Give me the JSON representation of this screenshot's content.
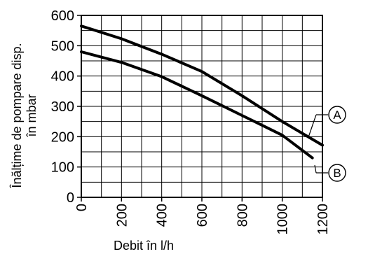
{
  "chart_data": {
    "type": "line",
    "title": "",
    "xlabel": "Debit în l/h",
    "ylabel_lines": [
      "Înălțime de pompare disp.",
      "în mbar"
    ],
    "xlim": [
      0,
      1200
    ],
    "ylim": [
      0,
      600
    ],
    "x_ticks": [
      "0",
      "200",
      "400",
      "600",
      "800",
      "1000",
      "1200"
    ],
    "y_ticks": [
      "0",
      "100",
      "200",
      "300",
      "400",
      "500",
      "600"
    ],
    "grid": true,
    "series": [
      {
        "name": "A",
        "x": [
          0,
          200,
          400,
          600,
          800,
          1000,
          1200
        ],
        "y": [
          565,
          523,
          472,
          415,
          335,
          250,
          172
        ]
      },
      {
        "name": "B",
        "x": [
          0,
          200,
          400,
          600,
          800,
          1000,
          1150
        ],
        "y": [
          480,
          445,
          398,
          335,
          270,
          205,
          130
        ]
      }
    ],
    "colors": {
      "line": "#000000",
      "grid": "#000000",
      "background": "#ffffff"
    }
  }
}
